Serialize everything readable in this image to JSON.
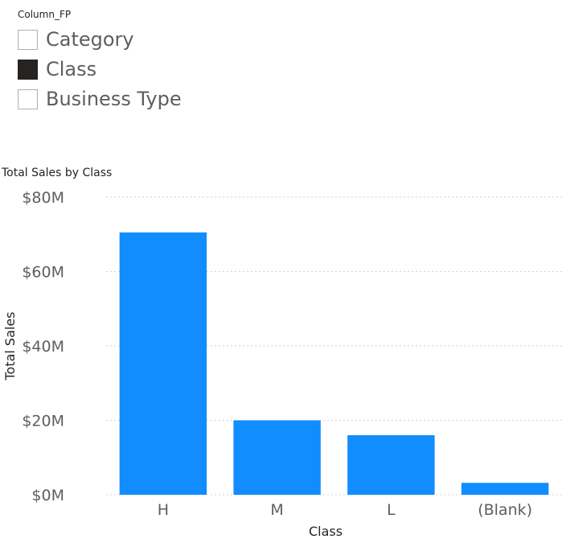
{
  "slicer": {
    "title": "Column_FP",
    "items": [
      {
        "label": "Category",
        "checked": false
      },
      {
        "label": "Class",
        "checked": true
      },
      {
        "label": "Business Type",
        "checked": false
      }
    ]
  },
  "chart_data": {
    "type": "bar",
    "title": "Total Sales by Class",
    "xlabel": "Class",
    "ylabel": "Total Sales",
    "categories": [
      "H",
      "M",
      "L",
      "(Blank)"
    ],
    "values": [
      70.5,
      20,
      16,
      3.2
    ],
    "ylim": [
      0,
      80
    ],
    "yticks": [
      "$0M",
      "$20M",
      "$40M",
      "$60M",
      "$80M"
    ],
    "bar_color": "#118DFF",
    "grid": true
  }
}
